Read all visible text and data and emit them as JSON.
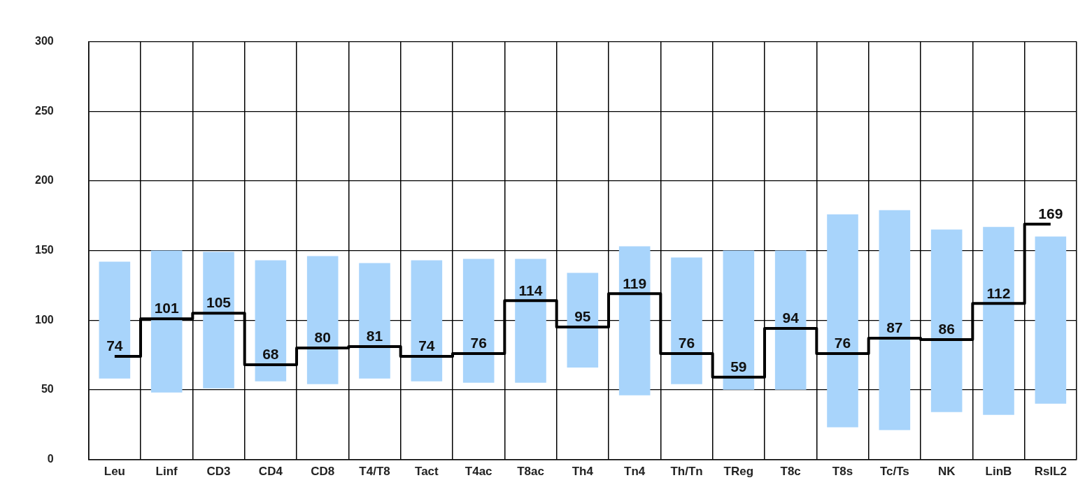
{
  "chart_data": {
    "type": "bar",
    "categories": [
      "Leu",
      "Linf",
      "CD3",
      "CD4",
      "CD8",
      "T4/T8",
      "Tact",
      "T4ac",
      "T8ac",
      "Th4",
      "Tn4",
      "Th/Tn",
      "TReg",
      "T8c",
      "T8s",
      "Tc/Ts",
      "NK",
      "LinB",
      "RsIL2"
    ],
    "series": [
      {
        "color": "#a8d4fb",
        "base": [
          58,
          48,
          51,
          56,
          54,
          58,
          56,
          55,
          55,
          66,
          46,
          54,
          50,
          50,
          23,
          21,
          34,
          32,
          40
        ],
        "values": [
          84,
          102,
          98,
          87,
          92,
          83,
          87,
          89,
          89,
          68,
          107,
          91,
          100,
          100,
          153,
          158,
          131,
          135,
          120
        ]
      },
      {
        "type": "step",
        "color": "#000000",
        "values": [
          74,
          101,
          105,
          68,
          80,
          81,
          74,
          76,
          114,
          95,
          119,
          76,
          59,
          94,
          76,
          87,
          86,
          112,
          169
        ],
        "value_labels": [
          "74",
          "101",
          "105",
          "68",
          "80",
          "81",
          "74",
          "76",
          "114",
          "95",
          "119",
          "76",
          "59",
          "94",
          "76",
          "87",
          "86",
          "112",
          "169"
        ]
      }
    ],
    "ylim": [
      0,
      300
    ],
    "yticks": [
      0,
      50,
      100,
      150,
      200,
      250,
      300
    ],
    "grid": true,
    "legend": false
  }
}
